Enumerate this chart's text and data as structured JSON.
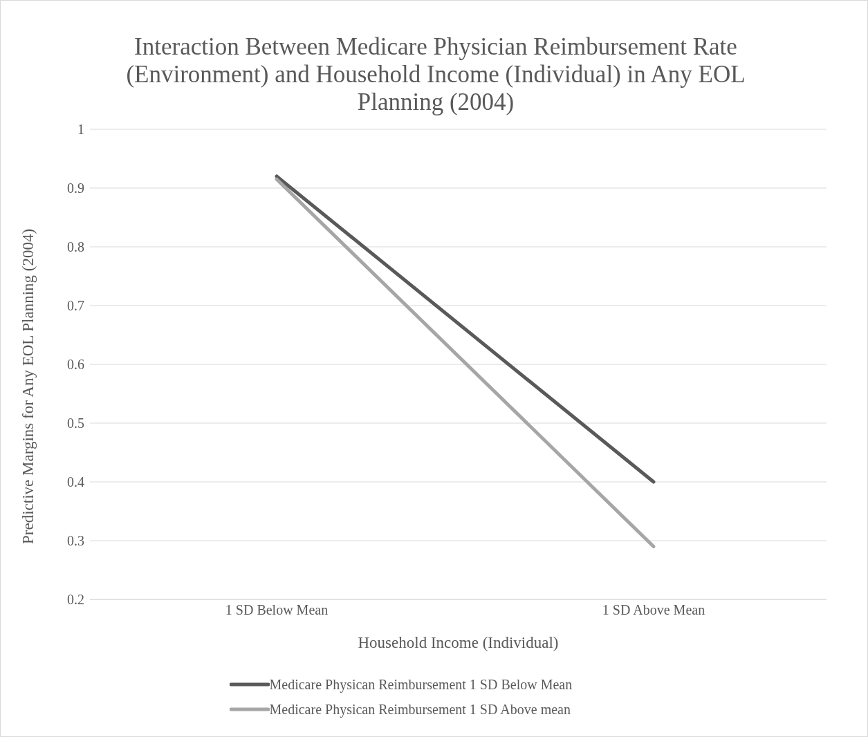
{
  "chart_data": {
    "type": "line",
    "title": "Interaction Between Medicare Physician Reimbursement Rate (Environment) and Household Income (Individual) in Any EOL Planning (2004)",
    "xlabel": "Household Income (Individual)",
    "ylabel": "Predictive Margins for Any EOL Planning (2004)",
    "categories": [
      "1 SD Below Mean",
      "1 SD Above Mean"
    ],
    "series": [
      {
        "name": "Medicare Physican Reimbursement 1 SD Below Mean",
        "color": "#595959",
        "values": [
          0.92,
          0.4
        ]
      },
      {
        "name": "Medicare Physican Reimbursement 1 SD Above mean",
        "color": "#a6a6a6",
        "values": [
          0.915,
          0.29
        ]
      }
    ],
    "ylim": [
      0.2,
      1
    ],
    "yticks": [
      0.2,
      0.3,
      0.4,
      0.5,
      0.6,
      0.7,
      0.8,
      0.9,
      1
    ],
    "grid": "y",
    "legend": "bottom",
    "marker": "none",
    "line_style": "solid"
  }
}
